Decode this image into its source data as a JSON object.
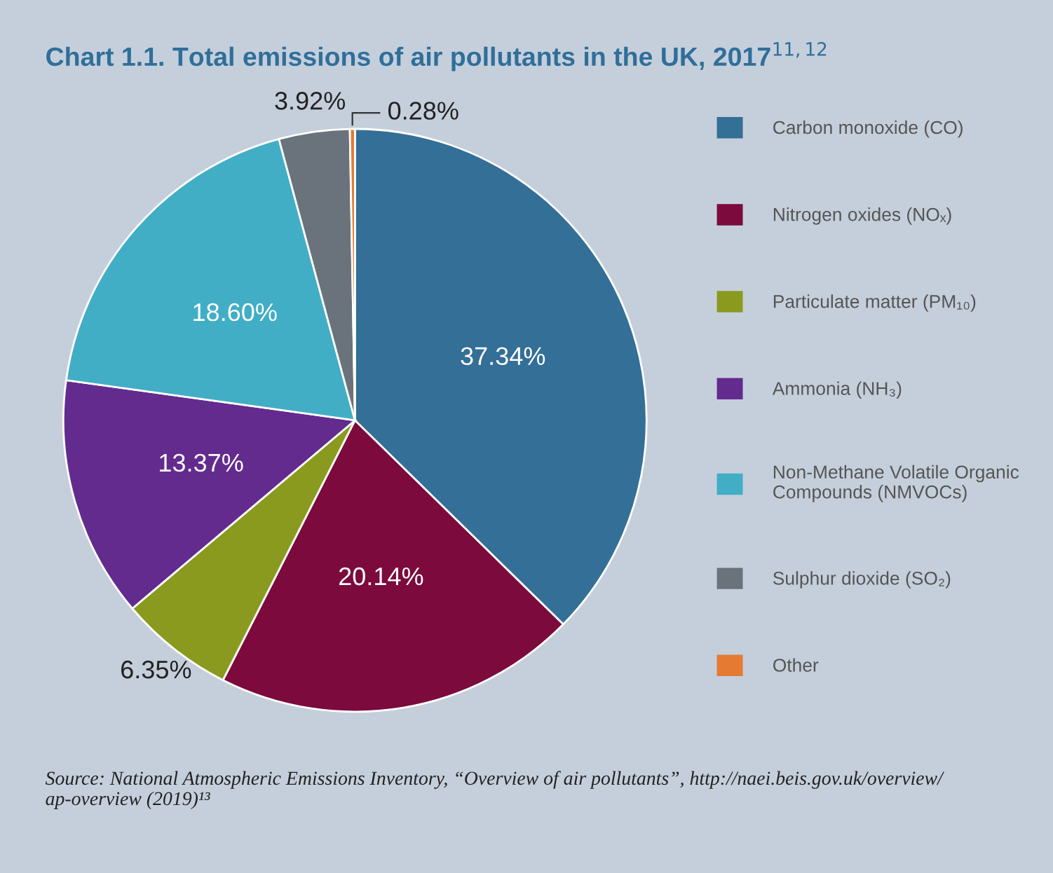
{
  "chart_data": {
    "type": "pie",
    "title": "Chart 1.1. Total emissions of air pollutants in the UK, 2017$^{11,12}$",
    "categories": [
      "Carbon monoxide (CO)",
      "Nitrogen oxides (NOₓ)",
      "Particulate matter (PM₁₀)",
      "Ammonia (NH₃)",
      "Non-Methane Volatile Organic\nCompounds (NMVOCs)",
      "Sulphur dioxide (SO₂)",
      "Other"
    ],
    "values": [
      37.34,
      20.14,
      6.35,
      13.37,
      18.6,
      3.92,
      0.28
    ],
    "value_labels": [
      "37.34%",
      "20.14%",
      "6.35%",
      "13.37%",
      "18.60%",
      "3.92%",
      "0.28%"
    ],
    "colors": [
      "#336f96",
      "#7c0a3c",
      "#8a9a1e",
      "#632b8e",
      "#41aec6",
      "#6a737c",
      "#e57a33"
    ],
    "legend": "right",
    "annotations": [
      "Source: National Atmospheric Emissions Inventory, “Overview of air pollutants”, http://naei.beis.gov.uk/overview/\nap-overview (2019)¹³"
    ]
  }
}
